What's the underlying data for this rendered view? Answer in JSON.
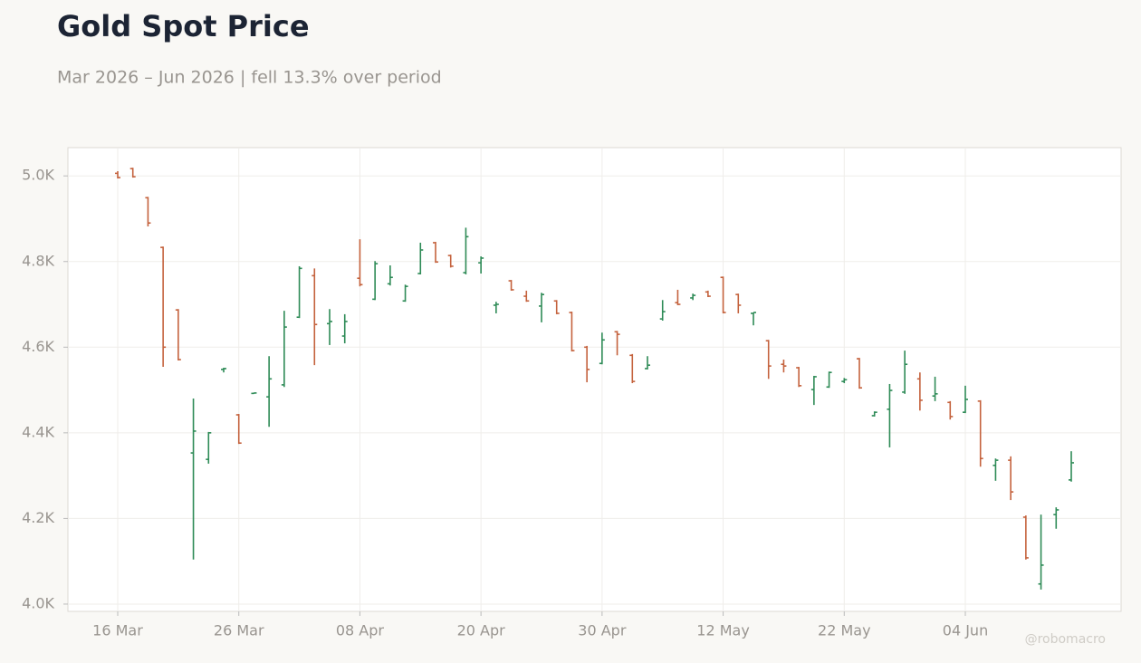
{
  "chart_data": {
    "type": "ohlc",
    "title": "Gold Spot Price",
    "subtitle": "Mar 2026 – Jun 2026 | fell 13.3% over period",
    "watermark": "@robomacro",
    "up_color": "#2e8b57",
    "down_color": "#c4623d",
    "grid": true,
    "categories": [
      "16 Mar",
      null,
      null,
      null,
      null,
      null,
      null,
      null,
      "26 Mar",
      null,
      null,
      null,
      null,
      null,
      null,
      null,
      "08 Apr",
      null,
      null,
      null,
      null,
      null,
      null,
      null,
      "20 Apr",
      null,
      null,
      null,
      null,
      null,
      null,
      null,
      "30 Apr",
      null,
      null,
      null,
      null,
      null,
      null,
      null,
      "12 May",
      null,
      null,
      null,
      null,
      null,
      null,
      null,
      "22 May",
      null,
      null,
      null,
      null,
      null,
      null,
      null,
      "04 Jun",
      null,
      null,
      null,
      null,
      null,
      null,
      null
    ],
    "open": [
      5006,
      5017,
      4949,
      4833,
      4687,
      4353,
      4338,
      4548,
      4442,
      4492,
      4484,
      4512,
      4670,
      4767,
      4655,
      4626,
      4761,
      4712,
      4748,
      4708,
      4772,
      4844,
      4814,
      4774,
      4797,
      4698,
      4755,
      4719,
      4696,
      4708,
      4681,
      4600,
      4562,
      4636,
      4581,
      4550,
      4666,
      4704,
      4715,
      4729,
      4763,
      4723,
      4679,
      4615,
      4560,
      4552,
      4501,
      4507,
      4520,
      4573,
      4440,
      4455,
      4495,
      4526,
      4486,
      4471,
      4448,
      4474,
      4324,
      4336,
      4203,
      4047,
      4209,
      4290
    ],
    "high": [
      5011,
      5019,
      4951,
      4835,
      4689,
      4480,
      4402,
      4552,
      4444,
      4494,
      4579,
      4685,
      4789,
      4784,
      4689,
      4677,
      4852,
      4801,
      4791,
      4746,
      4844,
      4846,
      4816,
      4879,
      4812,
      4706,
      4757,
      4732,
      4727,
      4710,
      4683,
      4603,
      4634,
      4638,
      4584,
      4579,
      4710,
      4734,
      4725,
      4732,
      4765,
      4725,
      4681,
      4617,
      4571,
      4554,
      4533,
      4543,
      4528,
      4575,
      4450,
      4514,
      4592,
      4541,
      4531,
      4474,
      4510,
      4476,
      4340,
      4345,
      4207,
      4209,
      4226,
      4357
    ],
    "low": [
      4994,
      4996,
      4882,
      4554,
      4569,
      4104,
      4328,
      4541,
      4374,
      4491,
      4414,
      4507,
      4668,
      4558,
      4605,
      4609,
      4742,
      4710,
      4744,
      4706,
      4770,
      4797,
      4786,
      4770,
      4772,
      4679,
      4732,
      4706,
      4658,
      4677,
      4590,
      4518,
      4560,
      4581,
      4516,
      4548,
      4662,
      4698,
      4710,
      4717,
      4679,
      4679,
      4651,
      4526,
      4541,
      4507,
      4465,
      4505,
      4516,
      4503,
      4438,
      4366,
      4491,
      4452,
      4474,
      4431,
      4446,
      4321,
      4288,
      4243,
      4104,
      4034,
      4176,
      4286
    ],
    "close": [
      4996,
      4998,
      4890,
      4600,
      4571,
      4404,
      4400,
      4550,
      4376,
      4493,
      4526,
      4647,
      4784,
      4653,
      4660,
      4660,
      4746,
      4795,
      4763,
      4742,
      4827,
      4799,
      4789,
      4858,
      4808,
      4700,
      4734,
      4708,
      4723,
      4679,
      4592,
      4548,
      4617,
      4630,
      4520,
      4558,
      4683,
      4700,
      4721,
      4719,
      4681,
      4698,
      4681,
      4556,
      4556,
      4510,
      4531,
      4541,
      4524,
      4505,
      4448,
      4499,
      4560,
      4476,
      4491,
      4438,
      4478,
      4340,
      4336,
      4262,
      4108,
      4091,
      4220,
      4330
    ],
    "ylim": [
      3983,
      5066
    ],
    "yticks": [
      {
        "value": 4000,
        "label": "4.0K"
      },
      {
        "value": 4200,
        "label": "4.2K"
      },
      {
        "value": 4400,
        "label": "4.4K"
      },
      {
        "value": 4600,
        "label": "4.6K"
      },
      {
        "value": 4800,
        "label": "4.8K"
      },
      {
        "value": 5000,
        "label": "5.0K"
      }
    ]
  }
}
